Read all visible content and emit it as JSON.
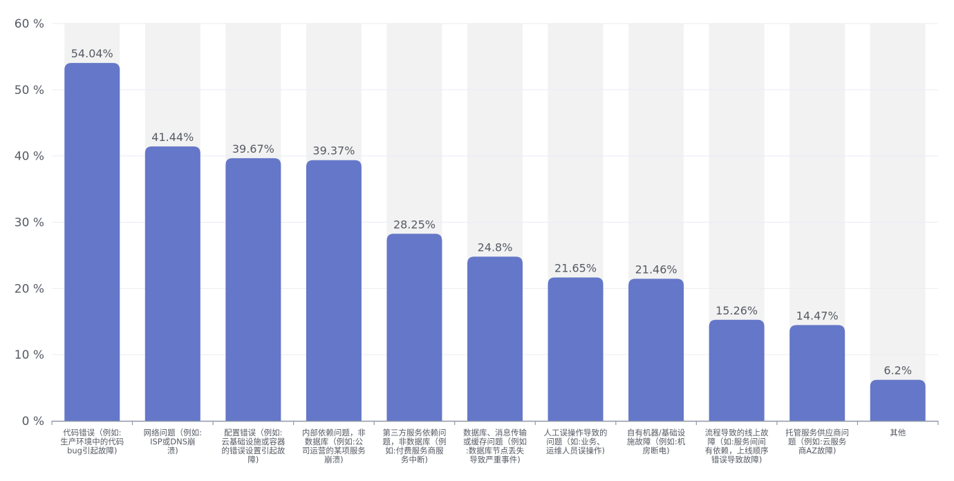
{
  "chart_data": {
    "type": "bar",
    "title": "",
    "xlabel": "",
    "ylabel": "",
    "ylim": [
      0,
      60
    ],
    "y_ticks": [
      0,
      10,
      20,
      30,
      40,
      50,
      60
    ],
    "y_tick_labels": [
      "0 %",
      "10 %",
      "20 %",
      "30 %",
      "40 %",
      "50 %",
      "60 %"
    ],
    "grid": true,
    "category_background_bands": true,
    "bar_color": "#6477c8",
    "band_color": "#f2f2f2",
    "grid_color": "#e9ecf2",
    "axis_color": "#8e97a8",
    "label_color": "#555a63",
    "categories": [
      [
        "代码错误（例如:",
        "生产环境中的代码",
        "bug引起故障)"
      ],
      [
        "网络问题（例如:",
        "ISP或DNS崩",
        "溃)"
      ],
      [
        "配置错误（例如:",
        "云基础设施或容器",
        "的错误设置引起故",
        "障)"
      ],
      [
        "内部依赖问题，非",
        "数据库（例如:公",
        "司运营的某项服务",
        "崩溃)"
      ],
      [
        "第三方服务依赖问",
        "题，非数据库（例",
        "如:付费服务商服",
        "务中断)"
      ],
      [
        "数据库、消息传输",
        "或缓存问题（例如",
        ":数据库节点丢失",
        "导致严重事件)"
      ],
      [
        "人工误操作导致的",
        "问题（如:业务、",
        "运维人员误操作)"
      ],
      [
        "自有机器/基础设",
        "施故障（例如:机",
        "房断电)"
      ],
      [
        "流程导致的线上故",
        "障（如:服务间间",
        "有依赖，上线顺序",
        "错误导致故障)"
      ],
      [
        "托管服务供应商问",
        "题（例如:云服务",
        "商AZ故障)"
      ],
      [
        "其他"
      ]
    ],
    "values": [
      54.04,
      41.44,
      39.67,
      39.37,
      28.25,
      24.8,
      21.65,
      21.46,
      15.26,
      14.47,
      6.2
    ],
    "data_labels": [
      "54.04%",
      "41.44%",
      "39.67%",
      "39.37%",
      "28.25%",
      "24.8%",
      "21.65%",
      "21.46%",
      "15.26%",
      "14.47%",
      "6.2%"
    ]
  }
}
